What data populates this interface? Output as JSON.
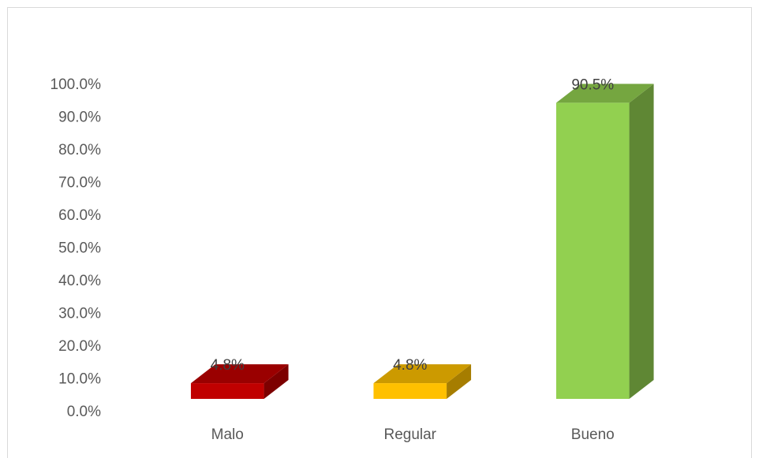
{
  "chart_data": {
    "type": "bar3d",
    "categories": [
      "Malo",
      "Regular",
      "Bueno"
    ],
    "values": [
      4.8,
      4.8,
      90.5
    ],
    "value_labels": [
      "4.8%",
      "4.8%",
      "90.5%"
    ],
    "colors": [
      "#c00000",
      "#ffc000",
      "#92d050"
    ],
    "ylim": [
      0,
      100
    ],
    "yticks": [
      {
        "value": 0,
        "label": "0.0%"
      },
      {
        "value": 10,
        "label": "10.0%"
      },
      {
        "value": 20,
        "label": "20.0%"
      },
      {
        "value": 30,
        "label": "30.0%"
      },
      {
        "value": 40,
        "label": "40.0%"
      },
      {
        "value": 50,
        "label": "50.0%"
      },
      {
        "value": 60,
        "label": "60.0%"
      },
      {
        "value": 70,
        "label": "70.0%"
      },
      {
        "value": 80,
        "label": "80.0%"
      },
      {
        "value": 90,
        "label": "90.0%"
      },
      {
        "value": 100,
        "label": "100.0%"
      }
    ],
    "grid": false
  }
}
